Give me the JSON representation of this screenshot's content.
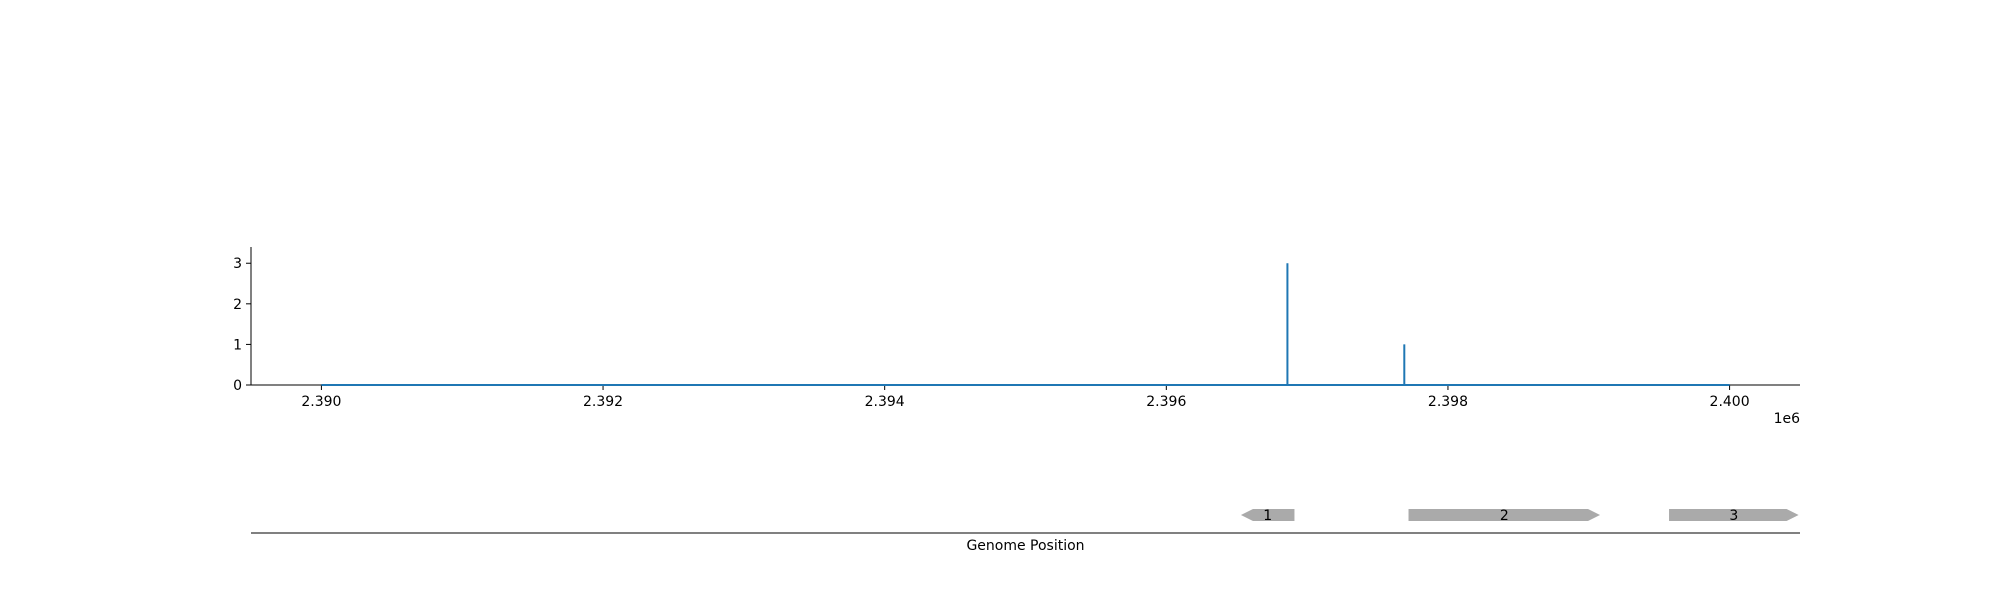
{
  "chart_data": [
    {
      "type": "line",
      "title": "",
      "xlabel": "",
      "ylabel": "",
      "x_offset_text": "1e6",
      "xlim": [
        2389500,
        2400500
      ],
      "ylim": [
        0,
        3.4
      ],
      "xticks": [
        2390000,
        2392000,
        2394000,
        2396000,
        2398000,
        2400000
      ],
      "xtick_labels": [
        "2.390",
        "2.392",
        "2.394",
        "2.396",
        "2.398",
        "2.400"
      ],
      "yticks": [
        0,
        1,
        2,
        3
      ],
      "ytick_labels": [
        "0",
        "1",
        "2",
        "3"
      ],
      "grid": false,
      "series": [
        {
          "color": "#1f77b4",
          "x_start": 2390000,
          "x_end": 2400000,
          "baseline": 0,
          "spikes": [
            {
              "x": 2396860,
              "y": 3
            },
            {
              "x": 2397690,
              "y": 1
            }
          ]
        }
      ]
    },
    {
      "type": "gene_track",
      "xlabel": "Genome Position",
      "xlim": [
        2389500,
        2400500
      ],
      "feature_color": "#aaaaaa",
      "features": [
        {
          "label": "1",
          "start": 2396530,
          "end": 2396910,
          "strand": "-"
        },
        {
          "label": "2",
          "start": 2397720,
          "end": 2399080,
          "strand": "+"
        },
        {
          "label": "3",
          "start": 2399570,
          "end": 2400490,
          "strand": "+"
        }
      ]
    }
  ]
}
